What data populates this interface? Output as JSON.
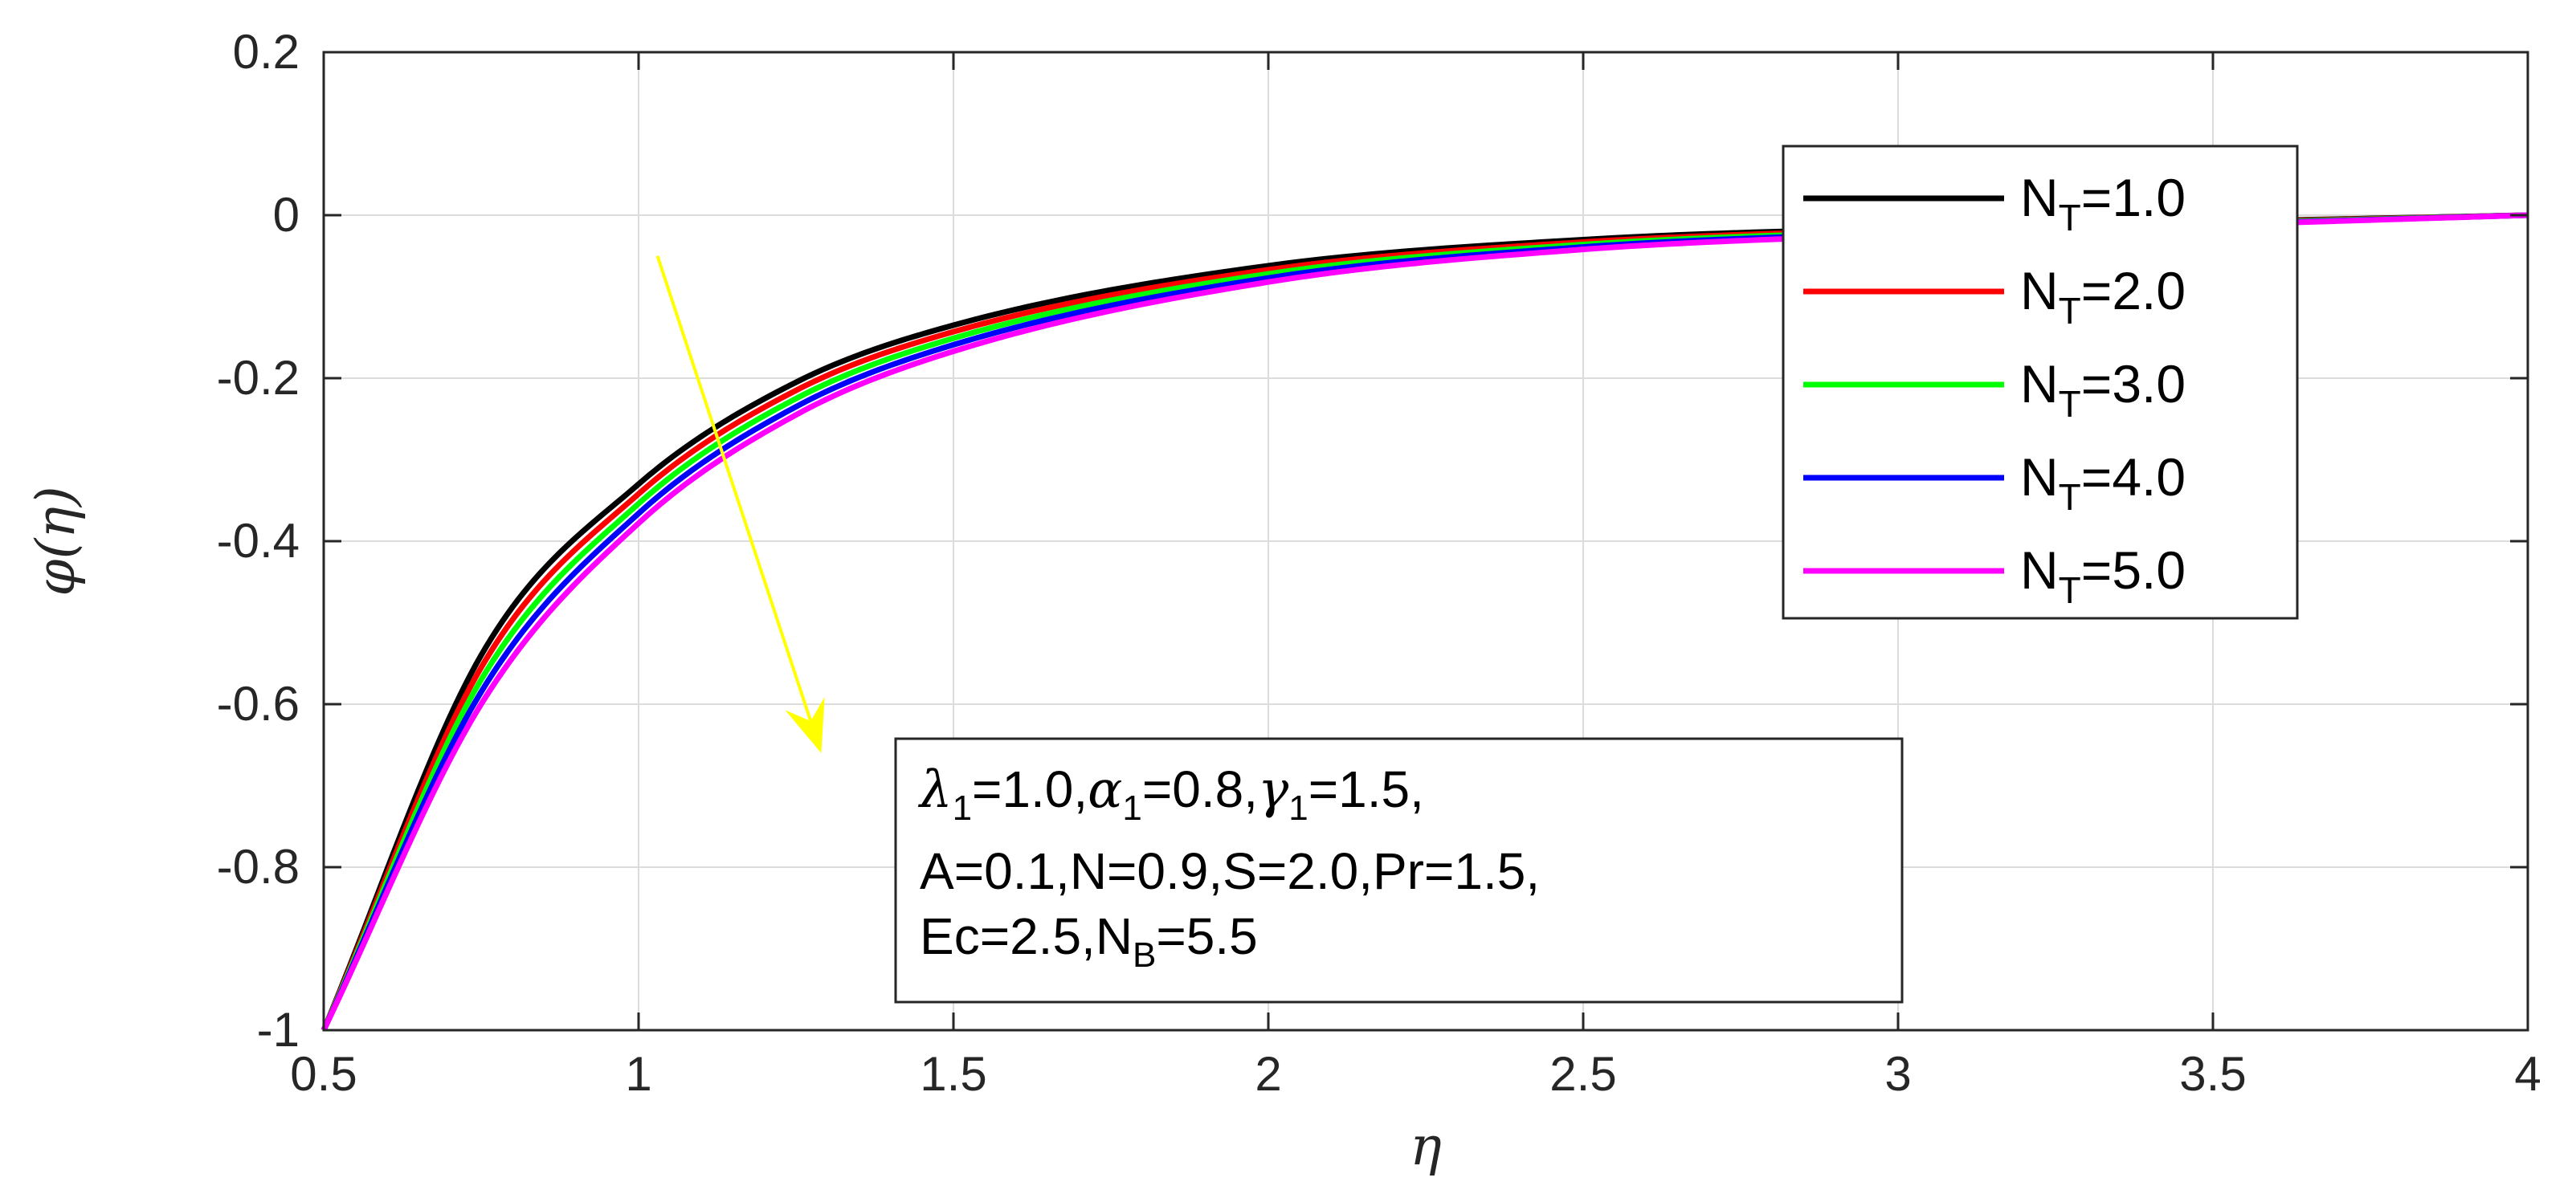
{
  "chart_data": {
    "type": "line",
    "xlabel": "η",
    "ylabel": "φ(η)",
    "xlim": [
      0.5,
      4
    ],
    "ylim": [
      -1,
      0.2
    ],
    "xticks": [
      0.5,
      1,
      1.5,
      2,
      2.5,
      3,
      3.5,
      4
    ],
    "xtick_labels": [
      "0.5",
      "1",
      "1.5",
      "2",
      "2.5",
      "3",
      "3.5",
      "4"
    ],
    "yticks": [
      0.2,
      0,
      -0.2,
      -0.4,
      -0.6,
      -0.8,
      -1
    ],
    "ytick_labels": [
      "0.2",
      "0",
      "-0.2",
      "-0.4",
      "-0.6",
      "-0.8",
      "-1"
    ],
    "grid": true,
    "legend_position": "top-right",
    "x": [
      0.5,
      0.75,
      1.0,
      1.25,
      1.5,
      2.0,
      2.5,
      3.0,
      3.5,
      4.0
    ],
    "series": [
      {
        "name": "N_T=1.0",
        "label_main": "N",
        "label_sub": "T",
        "label_rest": "=1.0",
        "color": "#000000",
        "values": [
          -1.0,
          -0.54,
          -0.33,
          -0.205,
          -0.135,
          -0.062,
          -0.03,
          -0.016,
          -0.008,
          0.0
        ]
      },
      {
        "name": "N_T=2.0",
        "label_main": "N",
        "label_sub": "T",
        "label_rest": "=2.0",
        "color": "#ff0000",
        "values": [
          -1.0,
          -0.555,
          -0.342,
          -0.215,
          -0.143,
          -0.067,
          -0.033,
          -0.018,
          -0.009,
          0.0
        ]
      },
      {
        "name": "N_T=3.0",
        "label_main": "N",
        "label_sub": "T",
        "label_rest": "=3.0",
        "color": "#00ff00",
        "values": [
          -1.0,
          -0.57,
          -0.354,
          -0.225,
          -0.151,
          -0.072,
          -0.036,
          -0.02,
          -0.01,
          0.0
        ]
      },
      {
        "name": "N_T=4.0",
        "label_main": "N",
        "label_sub": "T",
        "label_rest": "=4.0",
        "color": "#0000ff",
        "values": [
          -1.0,
          -0.585,
          -0.366,
          -0.235,
          -0.159,
          -0.077,
          -0.039,
          -0.022,
          -0.011,
          0.0
        ]
      },
      {
        "name": "N_T=5.0",
        "label_main": "N",
        "label_sub": "T",
        "label_rest": "=5.0",
        "color": "#ff00ff",
        "values": [
          -1.0,
          -0.6,
          -0.378,
          -0.245,
          -0.167,
          -0.082,
          -0.042,
          -0.024,
          -0.012,
          0.0
        ]
      }
    ],
    "arrow": {
      "color": "#ffff00",
      "from": [
        1.03,
        -0.05
      ],
      "to": [
        1.29,
        -0.66
      ]
    },
    "annotation": {
      "line1": {
        "lambda": "λ",
        "lambda_sub": "1",
        "lambda_val": "=1.0,",
        "alpha": "α",
        "alpha_sub": "1",
        "alpha_val": "=0.8,",
        "gamma": "γ",
        "gamma_sub": "1",
        "gamma_val": "=1.5,"
      },
      "line2": "A=0.1,N=0.9,S=2.0,Pr=1.5,",
      "line3": {
        "pre": "Ec=2.5,N",
        "sub": "B",
        "post": "=5.5"
      }
    }
  }
}
